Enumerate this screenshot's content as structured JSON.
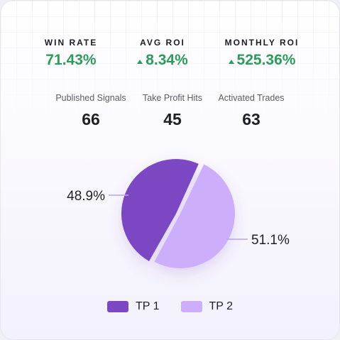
{
  "kpis": [
    {
      "label": "WIN RATE",
      "value": "71.43%",
      "trend": "none"
    },
    {
      "label": "AVG ROI",
      "value": "8.34%",
      "trend": "up"
    },
    {
      "label": "MONTHLY ROI",
      "value": "525.36%",
      "trend": "up"
    }
  ],
  "stats": [
    {
      "label": "Published Signals",
      "value": "66"
    },
    {
      "label": "Take Profit Hits",
      "value": "45"
    },
    {
      "label": "Activated Trades",
      "value": "63"
    }
  ],
  "colors": {
    "positive": "#2f9a5c",
    "tp1": "#7b47c2",
    "tp2": "#ccaefb",
    "leader": "#b9a4e6"
  },
  "chart_data": {
    "type": "pie",
    "slices": [
      {
        "name": "TP 1",
        "value": 48.9,
        "label": "48.9%",
        "color": "#7b47c2"
      },
      {
        "name": "TP 2",
        "value": 51.1,
        "label": "51.1%",
        "color": "#ccaefb"
      }
    ],
    "legend_position": "bottom"
  }
}
